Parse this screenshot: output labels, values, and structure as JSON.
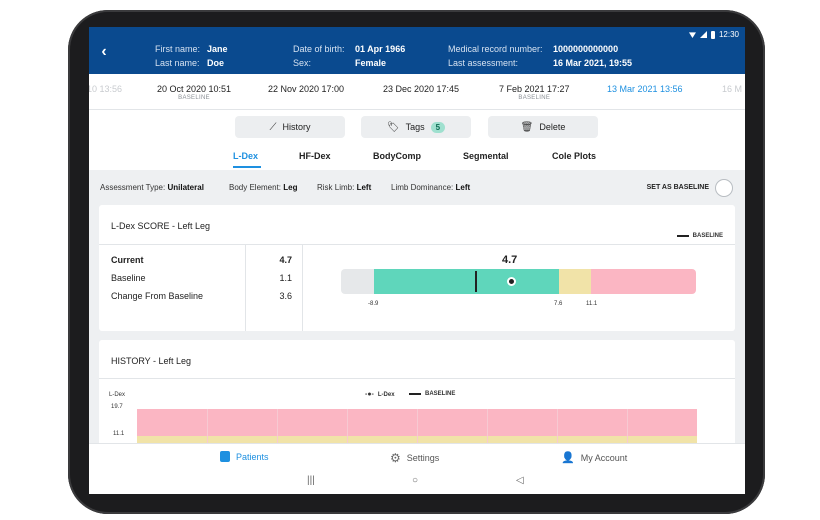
{
  "status_bar": {
    "time": "12:30"
  },
  "patient": {
    "first_name_label": "First name:",
    "first_name": "Jane",
    "last_name_label": "Last name:",
    "last_name": "Doe",
    "dob_label": "Date of birth:",
    "dob": "01 Apr 1966",
    "sex_label": "Sex:",
    "sex": "Female",
    "mrn_label": "Medical record number:",
    "mrn": "1000000000000",
    "last_assessment_label": "Last assessment:",
    "last_assessment": "16 Mar 2021, 19:55"
  },
  "dates": [
    {
      "label": "10 13:56",
      "tag": ""
    },
    {
      "label": "20 Oct 2020 10:51",
      "tag": "BASELINE"
    },
    {
      "label": "22 Nov 2020 17:00",
      "tag": ""
    },
    {
      "label": "23 Dec 2020 17:45",
      "tag": ""
    },
    {
      "label": "7 Feb 2021 17:27",
      "tag": "BASELINE"
    },
    {
      "label": "13 Mar 2021 13:56",
      "tag": ""
    },
    {
      "label": "16 M",
      "tag": ""
    }
  ],
  "actions": {
    "history": "History",
    "tags": "Tags",
    "tags_count": "5",
    "delete": "Delete"
  },
  "tabs": [
    "L-Dex",
    "HF-Dex",
    "BodyComp",
    "Segmental",
    "Cole Plots"
  ],
  "info": {
    "assessment_type_label": "Assessment Type:",
    "assessment_type": "Unilateral",
    "body_element_label": "Body Element:",
    "body_element": "Leg",
    "risk_limb_label": "Risk Limb:",
    "risk_limb": "Left",
    "limb_dominance_label": "Limb Dominance:",
    "limb_dominance": "Left",
    "set_baseline": "SET AS BASELINE"
  },
  "score": {
    "title": "L-Dex SCORE - Left Leg",
    "legend": "BASELINE",
    "current_label": "Current",
    "current": "4.7",
    "baseline_label": "Baseline",
    "baseline": "1.1",
    "change_label": "Change From Baseline",
    "change": "3.6",
    "gauge_value": "4.7",
    "ticks": [
      "-8.9",
      "7.6",
      "11.1"
    ]
  },
  "history": {
    "title": "HISTORY - Left Leg",
    "ylabel": "L-Dex",
    "legend_ldex": "L-Dex",
    "legend_baseline": "BASELINE",
    "y_ticks": [
      "19.7",
      "11.1"
    ]
  },
  "nav": {
    "patients": "Patients",
    "settings": "Settings",
    "account": "My Account"
  },
  "colors": {
    "header": "#0a4a8f",
    "accent": "#1e90e0",
    "gauge_green": "#5fd6bb",
    "gauge_yellow": "#f1e3a8",
    "gauge_pink": "#fbb6c3",
    "gauge_grey": "#e6e8ea"
  }
}
